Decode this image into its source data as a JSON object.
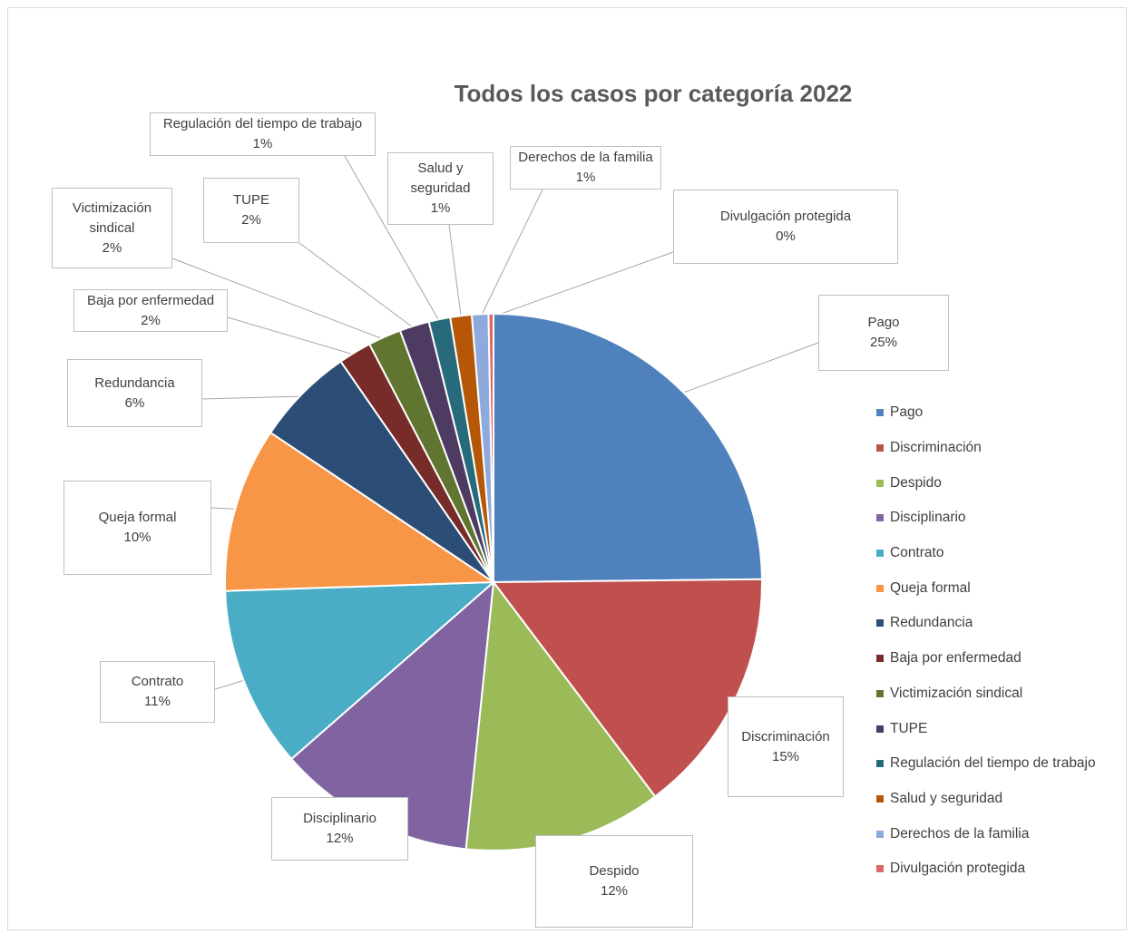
{
  "chart_data": {
    "type": "pie",
    "title": "Todos los casos por categoría 2022",
    "legend_position": "right",
    "slices": [
      {
        "name": "Pago",
        "value": 25,
        "label": "25%",
        "color": "#4F81BD"
      },
      {
        "name": "Discriminación",
        "value": 15,
        "label": "15%",
        "color": "#C0504D"
      },
      {
        "name": "Despido",
        "value": 12,
        "label": "12%",
        "color": "#9BBB59"
      },
      {
        "name": "Disciplinario",
        "value": 12,
        "label": "12%",
        "color": "#8064A2"
      },
      {
        "name": "Contrato",
        "value": 11,
        "label": "11%",
        "color": "#4BACC6"
      },
      {
        "name": "Queja formal",
        "value": 10,
        "label": "10%",
        "color": "#F79646"
      },
      {
        "name": "Redundancia",
        "value": 6,
        "label": "6%",
        "color": "#2C4D75"
      },
      {
        "name": "Baja por enfermedad",
        "value": 2,
        "label": "2%",
        "color": "#772C2A"
      },
      {
        "name": "Victimización sindical",
        "value": 2,
        "label": "2%",
        "color": "#5F7530"
      },
      {
        "name": "TUPE",
        "value": 1.8,
        "label": "2%",
        "color": "#4D3B62"
      },
      {
        "name": "Regulación del tiempo de trabajo",
        "value": 1.3,
        "label": "1%",
        "color": "#276A7C"
      },
      {
        "name": "Salud y seguridad",
        "value": 1.3,
        "label": "1%",
        "color": "#B65708"
      },
      {
        "name": "Derechos de la familia",
        "value": 1,
        "label": "1%",
        "color": "#8EA9DB"
      },
      {
        "name": "Divulgación protegida",
        "value": 0.3,
        "label": "0%",
        "color": "#E06666"
      }
    ]
  }
}
